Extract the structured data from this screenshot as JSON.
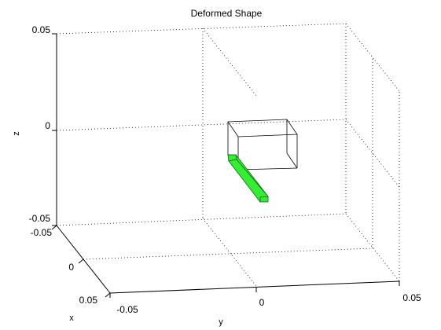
{
  "chart_data": {
    "type": "3d-wireframe",
    "title": "Deformed Shape",
    "xlabel": "x",
    "ylabel": "y",
    "zlabel": "z",
    "xlim": [
      -0.05,
      0.05
    ],
    "ylim": [
      -0.05,
      0.05
    ],
    "zlim": [
      -0.05,
      0.05
    ],
    "x_ticks": [
      "-0.05",
      "0",
      "0.05"
    ],
    "y_ticks": [
      "-0.05",
      "0",
      "0.05"
    ],
    "z_ticks": [
      "-0.05",
      "0",
      "0.05"
    ],
    "grid": true,
    "undeformed_color": "#000000",
    "deformed_color": "#33ee33",
    "deformed_edge_color": "#116611"
  }
}
